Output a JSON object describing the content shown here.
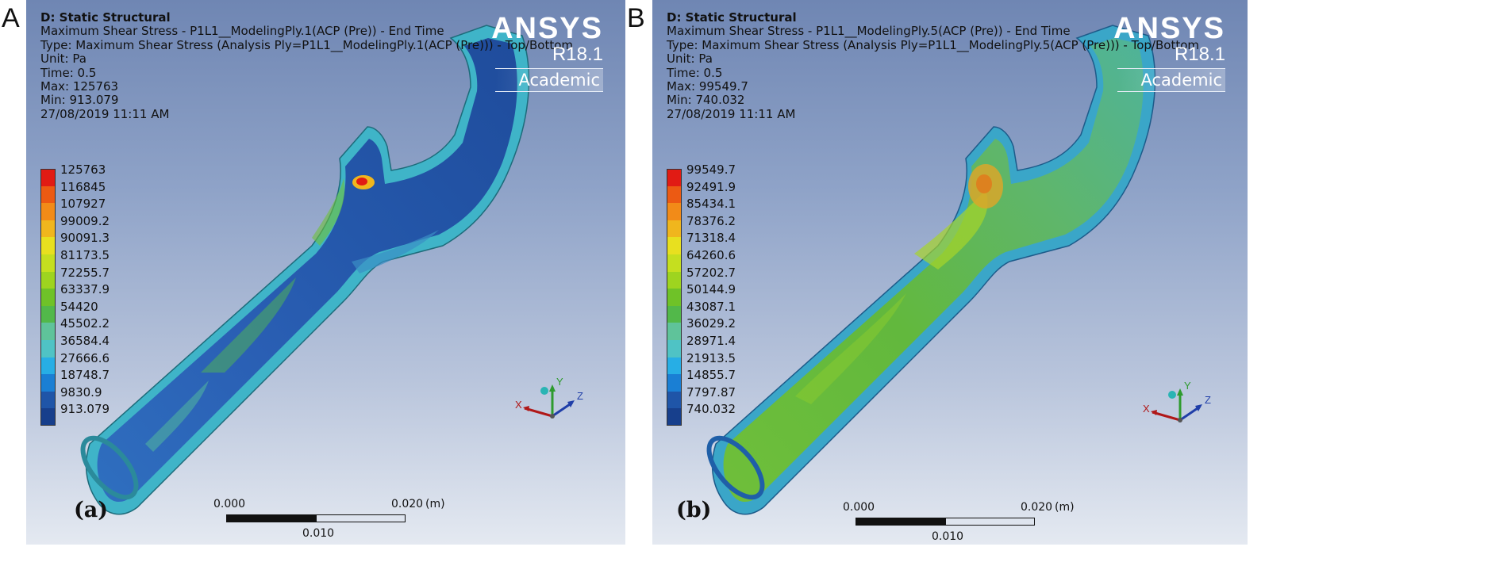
{
  "panels": [
    {
      "figure_letter": "A",
      "analysis_title": "D: Static Structural",
      "info_lines": [
        "Maximum Shear Stress - P1L1__ModelingPly.1(ACP (Pre)) - End Time",
        "Type: Maximum Shear Stress (Analysis Ply=P1L1__ModelingPly.1(ACP (Pre))) - Top/Bottom",
        "Unit: Pa",
        "Time: 0.5",
        "Max: 125763",
        "Min: 913.079",
        "27/08/2019 11:11 AM"
      ],
      "logo": {
        "name": "ANSYS",
        "version": "R18.1",
        "edition": "Academic"
      },
      "legend_values": [
        "125763",
        "116845",
        "107927",
        "99009.2",
        "90091.3",
        "81173.5",
        "72255.7",
        "63337.9",
        "54420",
        "45502.2",
        "36584.4",
        "27666.6",
        "18748.7",
        "9830.9",
        "913.079"
      ],
      "sub_label": "(a)",
      "scale": {
        "start": "0.000",
        "end": "0.020",
        "unit": "(m)",
        "mid": "0.010"
      },
      "axes": {
        "x": "X",
        "y": "Y",
        "z": "Z"
      }
    },
    {
      "figure_letter": "B",
      "analysis_title": "D: Static Structural",
      "info_lines": [
        "Maximum Shear Stress - P1L1__ModelingPly.5(ACP (Pre)) - End Time",
        "Type: Maximum Shear Stress (Analysis Ply=P1L1__ModelingPly.5(ACP (Pre))) - Top/Bottom",
        "Unit: Pa",
        "Time: 0.5",
        "Max: 99549.7",
        "Min: 740.032",
        "27/08/2019 11:11 AM"
      ],
      "logo": {
        "name": "ANSYS",
        "version": "R18.1",
        "edition": "Academic"
      },
      "legend_values": [
        "99549.7",
        "92491.9",
        "85434.1",
        "78376.2",
        "71318.4",
        "64260.6",
        "57202.7",
        "50144.9",
        "43087.1",
        "36029.2",
        "28971.4",
        "21913.5",
        "14855.7",
        "7797.87",
        "740.032"
      ],
      "sub_label": "(b)",
      "scale": {
        "start": "0.000",
        "end": "0.020",
        "unit": "(m)",
        "mid": "0.010"
      },
      "axes": {
        "x": "X",
        "y": "Y",
        "z": "Z"
      }
    }
  ],
  "legend_colors": [
    "#e11b14",
    "#ec5a13",
    "#f28b18",
    "#f0b61d",
    "#e8e01f",
    "#c5df1f",
    "#9ed41f",
    "#6fc228",
    "#52b84a",
    "#5fc39a",
    "#4fc3c5",
    "#27aee5",
    "#1a7fd4",
    "#1f55a8",
    "#173f8c"
  ]
}
